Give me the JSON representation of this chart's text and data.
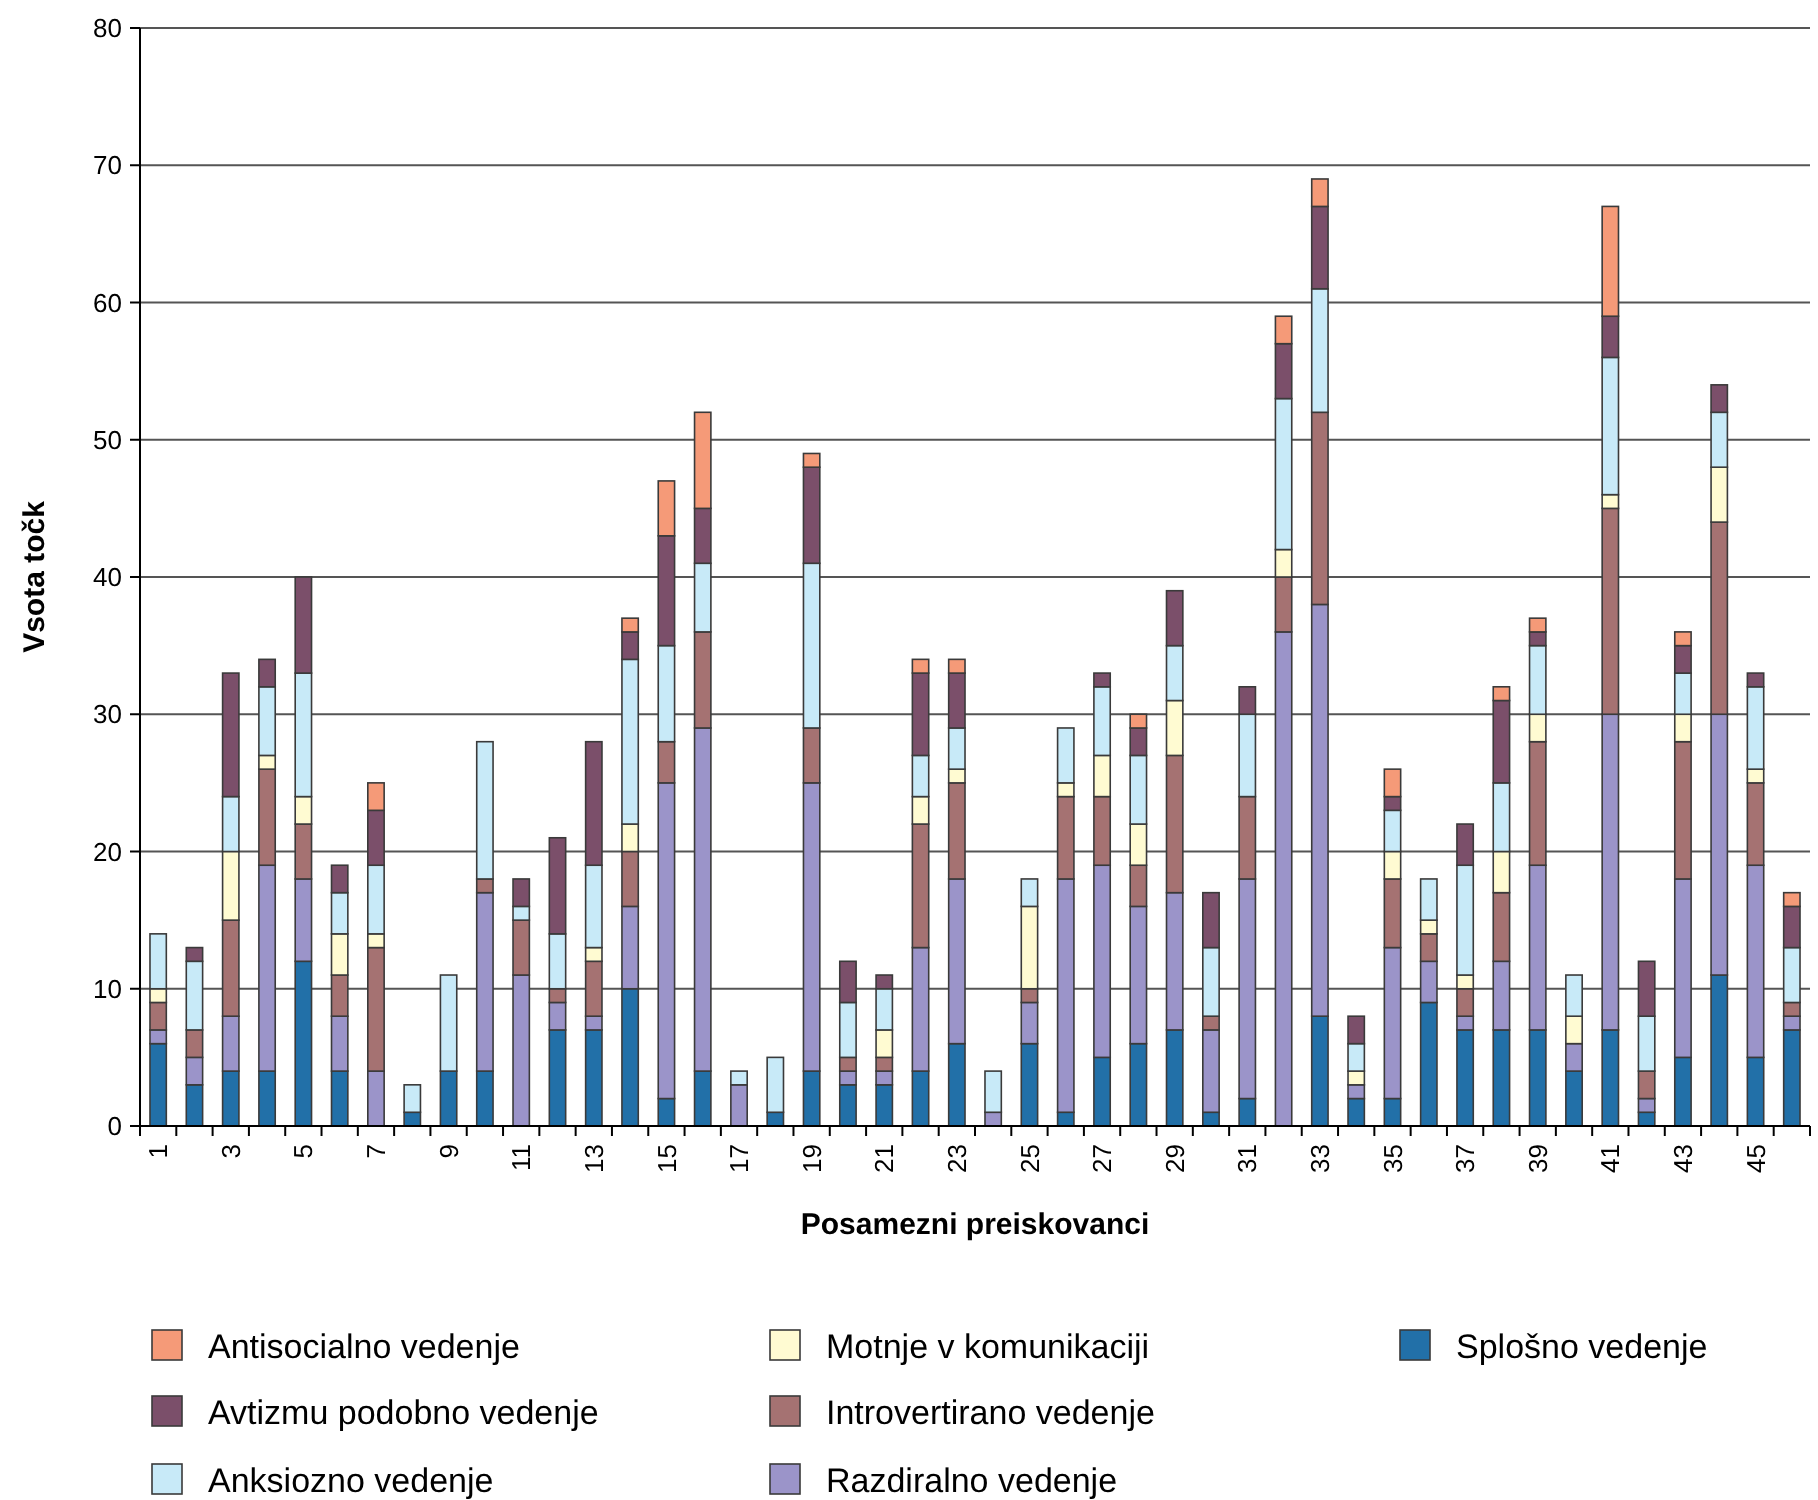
{
  "chart_data": {
    "type": "bar",
    "stacked": true,
    "xlabel": "Posamezni preiskovanci",
    "ylabel": "Vsota točk",
    "categories": [
      "1",
      null,
      "3",
      null,
      "5",
      null,
      "7",
      null,
      "9",
      null,
      "11",
      null,
      "13",
      null,
      "15",
      null,
      "17",
      null,
      "19",
      null,
      "21",
      null,
      "23",
      null,
      "25",
      null,
      "27",
      null,
      "29",
      null,
      "31",
      null,
      "33",
      null,
      "35",
      null,
      "37",
      null,
      "39",
      null,
      "41",
      null,
      "43",
      null,
      "45",
      null
    ],
    "ylim": [
      0,
      80
    ],
    "yticks": [
      0,
      10,
      20,
      30,
      40,
      50,
      60,
      70,
      80
    ],
    "grid": "y",
    "legend": "bottom",
    "series": [
      {
        "name": "Splošno vedenje",
        "color": "#2270a8",
        "values": [
          6,
          3,
          4,
          4,
          12,
          4,
          0,
          1,
          4,
          4,
          0,
          7,
          7,
          10,
          2,
          4,
          0,
          1,
          4,
          3,
          3,
          4,
          6,
          0,
          6,
          1,
          5,
          6,
          7,
          1,
          2,
          0,
          8,
          2,
          2,
          9,
          7,
          7,
          7,
          4,
          7,
          1,
          5,
          11,
          5,
          7
        ]
      },
      {
        "name": "Razdiralno vedenje",
        "color": "#9b94c9",
        "values": [
          1,
          2,
          4,
          15,
          6,
          4,
          4,
          0,
          0,
          13,
          11,
          2,
          1,
          6,
          23,
          25,
          3,
          0,
          21,
          1,
          1,
          9,
          12,
          1,
          3,
          17,
          14,
          10,
          10,
          6,
          16,
          36,
          30,
          1,
          11,
          3,
          1,
          5,
          12,
          2,
          23,
          1,
          13,
          19,
          14,
          1
        ]
      },
      {
        "name": "Introvertirano vedenje",
        "color": "#a57272",
        "values": [
          2,
          2,
          7,
          7,
          4,
          3,
          9,
          0,
          0,
          1,
          4,
          1,
          4,
          4,
          3,
          7,
          0,
          0,
          4,
          1,
          1,
          9,
          7,
          0,
          1,
          6,
          5,
          3,
          10,
          1,
          6,
          4,
          14,
          0,
          5,
          2,
          2,
          5,
          9,
          0,
          15,
          2,
          10,
          14,
          6,
          1
        ]
      },
      {
        "name": "Motnje v komunikaciji",
        "color": "#fffbd2",
        "values": [
          1,
          0,
          5,
          1,
          2,
          3,
          1,
          0,
          0,
          0,
          0,
          0,
          1,
          2,
          0,
          0,
          0,
          0,
          0,
          0,
          2,
          2,
          1,
          0,
          6,
          1,
          3,
          3,
          4,
          0,
          0,
          2,
          0,
          1,
          2,
          1,
          1,
          3,
          2,
          2,
          1,
          0,
          2,
          4,
          1,
          0
        ]
      },
      {
        "name": "Anksiozno vedenje",
        "color": "#c8eaf8",
        "values": [
          4,
          5,
          4,
          5,
          9,
          3,
          5,
          2,
          7,
          10,
          1,
          4,
          6,
          12,
          7,
          5,
          1,
          4,
          12,
          4,
          3,
          3,
          3,
          3,
          2,
          4,
          5,
          5,
          4,
          5,
          6,
          11,
          9,
          2,
          3,
          3,
          8,
          5,
          5,
          3,
          10,
          4,
          3,
          4,
          6,
          4
        ]
      },
      {
        "name": "Avtizmu podobno vedenje",
        "color": "#7b4f6a",
        "values": [
          0,
          1,
          9,
          2,
          7,
          2,
          4,
          0,
          0,
          0,
          2,
          7,
          9,
          2,
          8,
          4,
          0,
          0,
          7,
          3,
          1,
          6,
          4,
          0,
          0,
          0,
          1,
          2,
          4,
          4,
          2,
          4,
          6,
          2,
          1,
          0,
          3,
          6,
          1,
          0,
          3,
          4,
          2,
          2,
          1,
          3
        ]
      },
      {
        "name": "Antisocialno vedenje",
        "color": "#f59a78",
        "values": [
          0,
          0,
          0,
          0,
          0,
          0,
          2,
          0,
          0,
          0,
          0,
          0,
          0,
          1,
          4,
          7,
          0,
          0,
          1,
          0,
          0,
          1,
          1,
          0,
          0,
          0,
          0,
          1,
          0,
          0,
          0,
          2,
          2,
          0,
          2,
          0,
          0,
          1,
          1,
          0,
          8,
          0,
          1,
          0,
          0,
          1
        ]
      }
    ]
  }
}
